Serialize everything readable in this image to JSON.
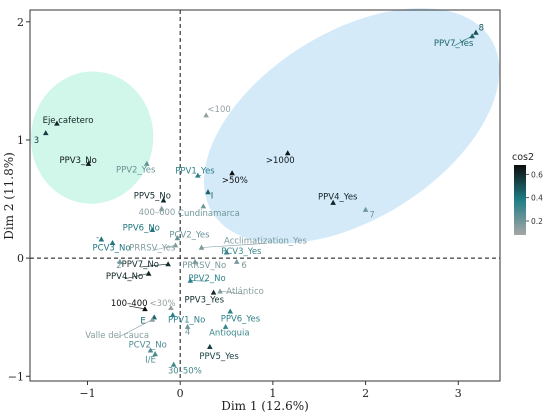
{
  "chart_data": {
    "type": "scatter",
    "title": "",
    "xlabel": "Dim 1 (12.6%)",
    "ylabel": "Dim 2 (11.8%)",
    "xlim": [
      -1.62,
      3.45
    ],
    "ylim": [
      -1.04,
      2.1
    ],
    "x_ticks": [
      -1,
      0,
      1,
      2,
      3
    ],
    "y_ticks": [
      -1,
      0,
      1,
      2
    ],
    "grid": false,
    "reference_lines": {
      "x": 0,
      "y": 0,
      "style": "dashed"
    },
    "colors": {
      "high": "#0d0d0d",
      "mid": "#207e86",
      "low": "#a6a6a6"
    },
    "ellipses": [
      {
        "cx": -0.95,
        "cy": 1.02,
        "rx": 0.66,
        "ry": 0.56,
        "angle": -5,
        "color": "#c9f5e6"
      },
      {
        "cx": 1.85,
        "cy": 1.12,
        "rx": 1.77,
        "ry": 0.79,
        "angle": 32,
        "color": "#cce6f8"
      }
    ],
    "legend": {
      "title": "cos2",
      "ticks": [
        0.2,
        0.4,
        0.6
      ],
      "range": [
        0.08,
        0.68
      ],
      "position": "right"
    },
    "points": [
      {
        "label": "8",
        "x": 3.19,
        "y": 1.91,
        "cos2": 0.5,
        "lx": 3.22,
        "ly": 1.95,
        "anchor": "start"
      },
      {
        "label": "PPV7_Yes",
        "x": 3.15,
        "y": 1.88,
        "cos2": 0.45,
        "lx": 2.95,
        "ly": 1.82,
        "anchor": "middle"
      },
      {
        "label": "<100",
        "x": 0.28,
        "y": 1.21,
        "cos2": 0.12,
        "lx": 0.42,
        "ly": 1.26,
        "anchor": "middle"
      },
      {
        "label": "Eje cafetero",
        "x": -1.33,
        "y": 1.14,
        "cos2": 0.62,
        "lx": -1.21,
        "ly": 1.17,
        "anchor": "middle"
      },
      {
        "label": "3",
        "x": -1.45,
        "y": 1.06,
        "cos2": 0.55,
        "lx": -1.55,
        "ly": 1.0,
        "anchor": "middle"
      },
      {
        "label": "PPV3_No",
        "x": -0.99,
        "y": 0.8,
        "cos2": 0.65,
        "lx": -1.1,
        "ly": 0.83,
        "anchor": "middle"
      },
      {
        "label": "PPV2_Yes",
        "x": -0.36,
        "y": 0.8,
        "cos2": 0.22,
        "lx": -0.48,
        "ly": 0.75,
        "anchor": "middle"
      },
      {
        "label": ">1000",
        "x": 1.16,
        "y": 0.89,
        "cos2": 0.65,
        "lx": 1.08,
        "ly": 0.83,
        "anchor": "middle"
      },
      {
        "label": "PPV1_Yes",
        "x": 0.19,
        "y": 0.7,
        "cos2": 0.35,
        "lx": 0.16,
        "ly": 0.74,
        "anchor": "middle"
      },
      {
        "label": ">50%",
        "x": 0.56,
        "y": 0.72,
        "cos2": 0.68,
        "lx": 0.59,
        "ly": 0.66,
        "anchor": "middle"
      },
      {
        "label": "I",
        "x": 0.3,
        "y": 0.56,
        "cos2": 0.45,
        "lx": 0.33,
        "ly": 0.53,
        "anchor": "start"
      },
      {
        "label": "PPV4_Yes",
        "x": 1.65,
        "y": 0.47,
        "cos2": 0.62,
        "lx": 1.7,
        "ly": 0.52,
        "anchor": "middle"
      },
      {
        "label": "7",
        "x": 2.0,
        "y": 0.41,
        "cos2": 0.2,
        "lx": 2.07,
        "ly": 0.37,
        "anchor": "middle"
      },
      {
        "label": "PPV5_No",
        "x": -0.18,
        "y": 0.49,
        "cos2": 0.6,
        "lx": -0.3,
        "ly": 0.53,
        "anchor": "middle"
      },
      {
        "label": "400–600",
        "x": -0.2,
        "y": 0.42,
        "cos2": 0.15,
        "lx": -0.25,
        "ly": 0.39,
        "anchor": "middle"
      },
      {
        "label": "Cundinamarca",
        "x": 0.25,
        "y": 0.44,
        "cos2": 0.2,
        "lx": 0.31,
        "ly": 0.38,
        "anchor": "middle"
      },
      {
        "label": "PPV6_No",
        "x": -0.3,
        "y": 0.24,
        "cos2": 0.4,
        "lx": -0.42,
        "ly": 0.26,
        "anchor": "middle"
      },
      {
        "label": "PCV2_Yes",
        "x": -0.03,
        "y": 0.17,
        "cos2": 0.22,
        "lx": 0.1,
        "ly": 0.2,
        "anchor": "middle"
      },
      {
        "label": "-",
        "x": -0.85,
        "y": 0.16,
        "cos2": 0.4,
        "lx": -0.89,
        "ly": 0.18,
        "anchor": "middle"
      },
      {
        "label": "PCV3_No",
        "x": -0.73,
        "y": 0.13,
        "cos2": 0.4,
        "lx": -0.74,
        "ly": 0.09,
        "anchor": "middle"
      },
      {
        "label": "Acclimatization_Yes",
        "x": 0.23,
        "y": 0.09,
        "cos2": 0.18,
        "lx": 0.92,
        "ly": 0.15,
        "anchor": "middle"
      },
      {
        "label": "PRRSV_Yes",
        "x": -0.05,
        "y": 0.11,
        "cos2": 0.16,
        "lx": -0.3,
        "ly": 0.09,
        "anchor": "middle"
      },
      {
        "label": "PCV3_Yes",
        "x": 0.5,
        "y": 0.05,
        "cos2": 0.32,
        "lx": 0.66,
        "ly": 0.06,
        "anchor": "middle"
      },
      {
        "label": "PPV7_No",
        "x": -0.13,
        "y": -0.05,
        "cos2": 0.6,
        "lx": -0.43,
        "ly": -0.05,
        "anchor": "middle"
      },
      {
        "label": "2",
        "x": -0.65,
        "y": -0.03,
        "cos2": 0.2,
        "lx": -0.66,
        "ly": -0.06,
        "anchor": "middle"
      },
      {
        "label": "PRRSV_No",
        "x": 0.16,
        "y": -0.03,
        "cos2": 0.18,
        "lx": 0.26,
        "ly": -0.06,
        "anchor": "middle"
      },
      {
        "label": "6",
        "x": 0.61,
        "y": -0.03,
        "cos2": 0.18,
        "lx": 0.69,
        "ly": -0.06,
        "anchor": "middle"
      },
      {
        "label": "PPV4_No",
        "x": -0.34,
        "y": -0.13,
        "cos2": 0.62,
        "lx": -0.6,
        "ly": -0.15,
        "anchor": "middle"
      },
      {
        "label": "PPV2_No",
        "x": 0.11,
        "y": -0.19,
        "cos2": 0.35,
        "lx": 0.29,
        "ly": -0.17,
        "anchor": "middle"
      },
      {
        "label": "Atlántico",
        "x": 0.43,
        "y": -0.28,
        "cos2": 0.15,
        "lx": 0.7,
        "ly": -0.28,
        "anchor": "middle"
      },
      {
        "label": "100–400",
        "x": -0.38,
        "y": -0.43,
        "cos2": 0.68,
        "lx": -0.55,
        "ly": -0.38,
        "anchor": "middle"
      },
      {
        "label": "PPV3_Yes",
        "x": 0.36,
        "y": -0.29,
        "cos2": 0.6,
        "lx": 0.26,
        "ly": -0.35,
        "anchor": "middle"
      },
      {
        "label": "<30%",
        "x": -0.1,
        "y": -0.42,
        "cos2": 0.12,
        "lx": -0.19,
        "ly": -0.38,
        "anchor": "middle"
      },
      {
        "label": "E",
        "x": -0.28,
        "y": -0.5,
        "cos2": 0.45,
        "lx": -0.4,
        "ly": -0.53,
        "anchor": "middle"
      },
      {
        "label": "PPV1_No",
        "x": -0.08,
        "y": -0.48,
        "cos2": 0.35,
        "lx": 0.07,
        "ly": -0.52,
        "anchor": "middle"
      },
      {
        "label": "PPV6_Yes",
        "x": 0.54,
        "y": -0.45,
        "cos2": 0.35,
        "lx": 0.65,
        "ly": -0.51,
        "anchor": "middle"
      },
      {
        "label": "4",
        "x": 0.08,
        "y": -0.58,
        "cos2": 0.2,
        "lx": 0.08,
        "ly": -0.62,
        "anchor": "middle"
      },
      {
        "label": "Valle del cauca",
        "x": -0.3,
        "y": -0.52,
        "cos2": 0.15,
        "lx": -0.68,
        "ly": -0.65,
        "anchor": "middle"
      },
      {
        "label": "Antioquia",
        "x": 0.49,
        "y": -0.58,
        "cos2": 0.32,
        "lx": 0.53,
        "ly": -0.63,
        "anchor": "middle"
      },
      {
        "label": "PCV2_No",
        "x": -0.32,
        "y": -0.78,
        "cos2": 0.28,
        "lx": -0.35,
        "ly": -0.73,
        "anchor": "middle"
      },
      {
        "label": "I/E",
        "x": -0.27,
        "y": -0.81,
        "cos2": 0.28,
        "lx": -0.32,
        "ly": -0.86,
        "anchor": "middle"
      },
      {
        "label": "PPV5_Yes",
        "x": 0.32,
        "y": -0.75,
        "cos2": 0.55,
        "lx": 0.42,
        "ly": -0.83,
        "anchor": "middle"
      },
      {
        "label": "30–50%",
        "x": -0.07,
        "y": -0.9,
        "cos2": 0.3,
        "lx": 0.05,
        "ly": -0.95,
        "anchor": "middle"
      }
    ]
  }
}
